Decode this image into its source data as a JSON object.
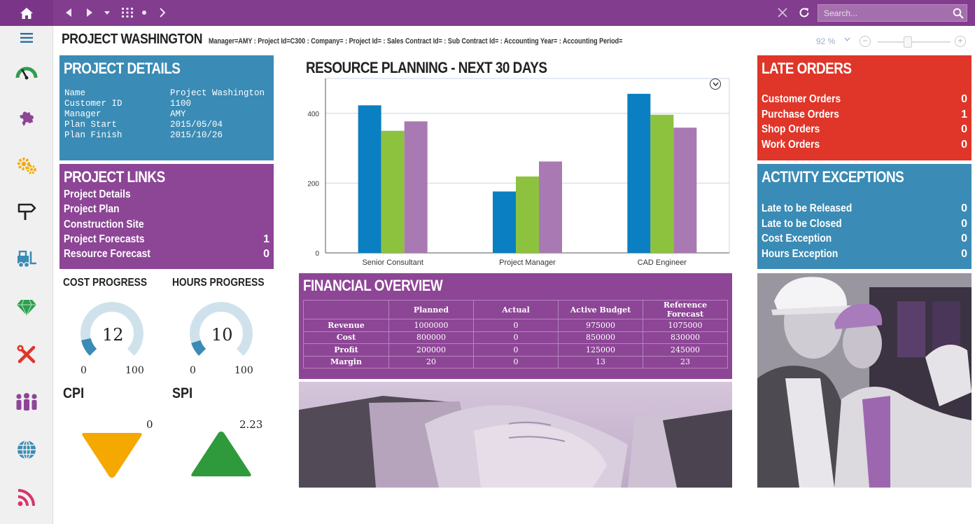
{
  "topbar": {
    "home_icon": "home-icon",
    "back_icon": "triangle-left-icon",
    "forward_icon": "triangle-right-icon",
    "dropdown_icon": "caret-down-icon",
    "grid_icon": "grid-icon",
    "dot_icon": "dot-icon",
    "chevron_icon": "chevron-right-icon",
    "close_icon": "close-icon",
    "refresh_icon": "refresh-icon",
    "search_placeholder": "Search...",
    "search_icon": "magnifier-icon"
  },
  "sidebar": {
    "menu_icon": "hamburger-icon",
    "items": [
      {
        "icon": "gauge-icon",
        "color": "#2e9e4f"
      },
      {
        "icon": "puzzle-icon",
        "color": "#8d4596"
      },
      {
        "icon": "gears-icon",
        "color": "#f2a900"
      },
      {
        "icon": "signpost-icon",
        "color": "#222222"
      },
      {
        "icon": "forklift-icon",
        "color": "#3a8bb5"
      },
      {
        "icon": "diamond-icon",
        "color": "#2e9e4f"
      },
      {
        "icon": "tools-icon",
        "color": "#e03529"
      },
      {
        "icon": "people-icon",
        "color": "#8d4596"
      },
      {
        "icon": "globe-icon",
        "color": "#3a8bb5"
      },
      {
        "icon": "rss-icon",
        "color": "#d6336c"
      }
    ]
  },
  "header": {
    "title": "PROJECT WASHINGTON",
    "context": "Manager=AMY : Project Id=C300 : Company= : Project Id= : Sales Contract Id= : Sub Contract Id= : Accounting Year= : Accounting Period="
  },
  "zoom": {
    "value": "92 %",
    "level_percent": 92,
    "minus": "−",
    "plus": "+"
  },
  "project_details": {
    "title": "PROJECT DETAILS",
    "rows": [
      {
        "key": "Name",
        "value": "Project Washington"
      },
      {
        "key": "Customer ID",
        "value": "1100"
      },
      {
        "key": "Manager",
        "value": "AMY"
      },
      {
        "key": "Plan Start",
        "value": "2015/05/04"
      },
      {
        "key": "Plan Finish",
        "value": "2015/10/26"
      }
    ]
  },
  "project_links": {
    "title": "PROJECT LINKS",
    "items": [
      {
        "label": "Project Details",
        "count": ""
      },
      {
        "label": "Project Plan",
        "count": ""
      },
      {
        "label": "Construction Site",
        "count": ""
      },
      {
        "label": "Project Forecasts",
        "count": "1"
      },
      {
        "label": "Resource Forecast",
        "count": "0"
      }
    ]
  },
  "cost_progress": {
    "label": "COST PROGRESS",
    "value": "12",
    "value_num": 12,
    "min": "0",
    "max": "100"
  },
  "hours_progress": {
    "label": "HOURS PROGRESS",
    "value": "10",
    "value_num": 10,
    "min": "0",
    "max": "100"
  },
  "cpi": {
    "label": "CPI",
    "value": "0",
    "direction": "down",
    "color": "#f5a800"
  },
  "spi": {
    "label": "SPI",
    "value": "2.23",
    "direction": "up",
    "color": "#2e9a3c"
  },
  "resource_chart": {
    "title": "RESOURCE PLANNING - NEXT 30 DAYS",
    "options_icon": "chevron-down-circle-icon"
  },
  "chart_data": {
    "type": "bar",
    "categories": [
      "Senior Consultant",
      "Project Manager",
      "CAD Engineer"
    ],
    "series": [
      {
        "values": [
          423,
          176,
          456
        ],
        "color": "#0a7fc1"
      },
      {
        "values": [
          350,
          219,
          396
        ],
        "color": "#8dc23f"
      },
      {
        "values": [
          377,
          262,
          359
        ],
        "color": "#a979b3"
      }
    ],
    "yticks": [
      0,
      200,
      400
    ],
    "ylim": [
      0,
      500
    ],
    "grid": true
  },
  "financial": {
    "title": "FINANCIAL OVERVIEW",
    "columns": [
      "",
      "Planned",
      "Actual",
      "Active Budget",
      "Reference Forecast"
    ],
    "rows": [
      [
        "Revenue",
        "1000000",
        "0",
        "975000",
        "1075000"
      ],
      [
        "Cost",
        "800000",
        "0",
        "850000",
        "830000"
      ],
      [
        "Profit",
        "200000",
        "0",
        "125000",
        "245000"
      ],
      [
        "Margin",
        "20",
        "0",
        "13",
        "23"
      ]
    ]
  },
  "late_orders": {
    "title": "LATE ORDERS",
    "items": [
      {
        "label": "Customer Orders",
        "count": "0"
      },
      {
        "label": "Purchase Orders",
        "count": "1"
      },
      {
        "label": "Shop Orders",
        "count": "0"
      },
      {
        "label": "Work Orders",
        "count": "0"
      }
    ]
  },
  "activity_exceptions": {
    "title": "ACTIVITY EXCEPTIONS",
    "items": [
      {
        "label": "Late to be Released",
        "count": "0"
      },
      {
        "label": "Late to be Closed",
        "count": "0"
      },
      {
        "label": "Cost Exception",
        "count": "0"
      },
      {
        "label": "Hours Exception",
        "count": "0"
      }
    ]
  }
}
